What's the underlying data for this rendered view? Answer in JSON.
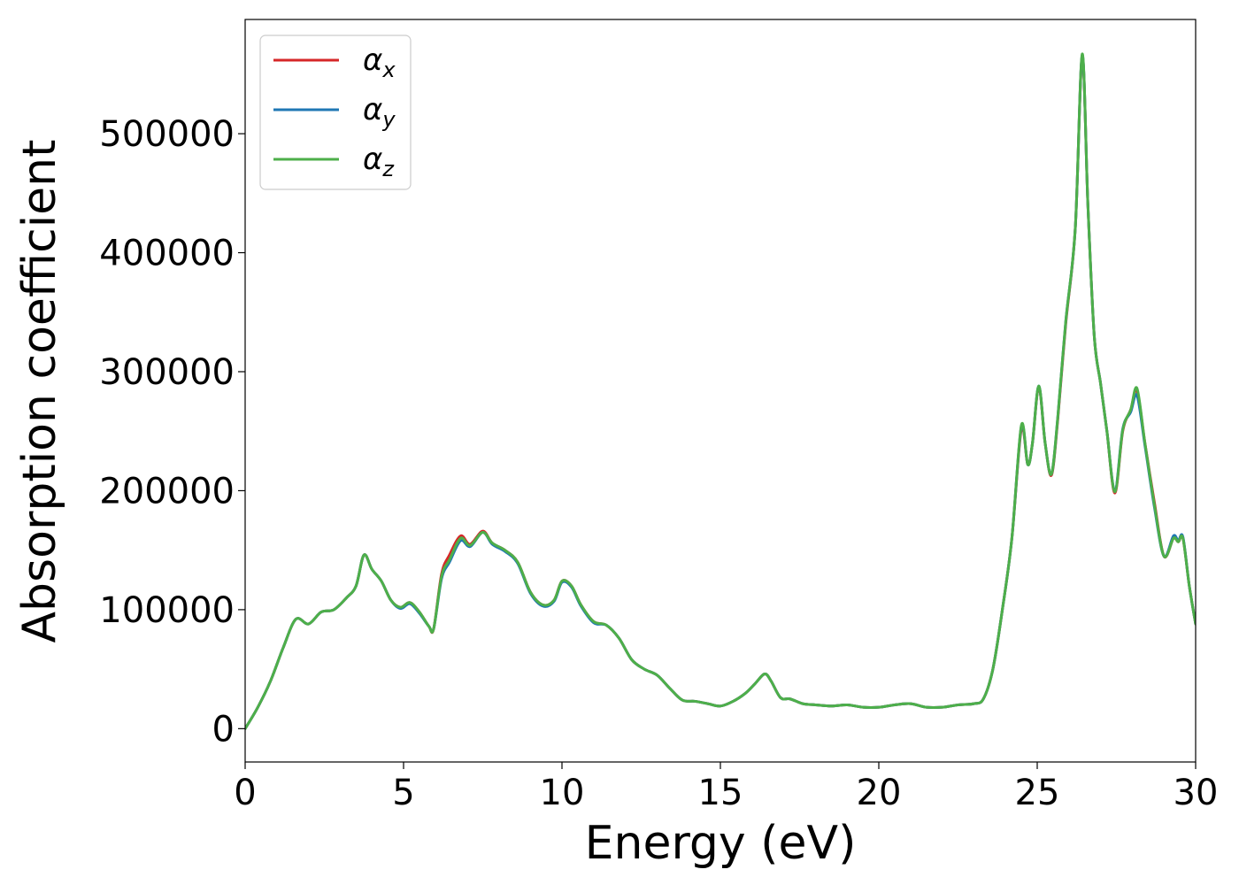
{
  "chart_data": {
    "type": "line",
    "xlabel": "Energy (eV)",
    "ylabel": "Absorption coefficient",
    "xlim": [
      0,
      30
    ],
    "ylim": [
      -28000,
      596000
    ],
    "x_ticks": [
      0,
      5,
      10,
      15,
      20,
      25,
      30
    ],
    "y_ticks": [
      0,
      100000,
      200000,
      300000,
      400000,
      500000
    ],
    "grid": false,
    "legend_position": "top-left",
    "series": [
      {
        "name": "α",
        "name_sub": "x",
        "color": "#d62728",
        "x": [
          0,
          0.4,
          0.8,
          1.2,
          1.6,
          2.0,
          2.4,
          2.8,
          3.2,
          3.5,
          3.75,
          4.0,
          4.3,
          4.6,
          4.9,
          5.2,
          5.5,
          5.8,
          5.95,
          6.2,
          6.45,
          6.8,
          7.1,
          7.5,
          7.8,
          8.2,
          8.6,
          9.0,
          9.4,
          9.75,
          10.0,
          10.3,
          10.6,
          11.0,
          11.4,
          11.8,
          12.2,
          12.6,
          13.0,
          13.4,
          13.8,
          14.2,
          14.6,
          15.0,
          15.4,
          15.8,
          16.1,
          16.4,
          16.6,
          16.9,
          17.2,
          17.6,
          18.0,
          18.5,
          19.0,
          19.5,
          20.0,
          20.5,
          21.0,
          21.5,
          22.0,
          22.5,
          23.0,
          23.3,
          23.6,
          23.9,
          24.2,
          24.5,
          24.7,
          24.85,
          25.05,
          25.25,
          25.45,
          25.65,
          25.9,
          26.2,
          26.42,
          26.6,
          26.8,
          27.0,
          27.2,
          27.45,
          27.7,
          27.95,
          28.15,
          28.4,
          28.7,
          29.0,
          29.3,
          29.45,
          29.6,
          29.8,
          30.0
        ],
        "values": [
          0,
          18000,
          40000,
          68000,
          92000,
          88000,
          98000,
          100000,
          110000,
          120000,
          146000,
          134000,
          124000,
          108000,
          102000,
          106000,
          98000,
          86000,
          84000,
          130000,
          146000,
          162000,
          155000,
          166000,
          156000,
          150000,
          140000,
          115000,
          104000,
          108000,
          124000,
          120000,
          104000,
          90000,
          87000,
          76000,
          58000,
          50000,
          45000,
          34000,
          24000,
          23000,
          21000,
          19000,
          23000,
          30000,
          38000,
          46000,
          40000,
          26000,
          25000,
          21000,
          20000,
          19000,
          20000,
          18000,
          18000,
          20000,
          21000,
          18000,
          18000,
          20000,
          21000,
          25000,
          50000,
          100000,
          160000,
          252000,
          222000,
          240000,
          287000,
          240000,
          213000,
          260000,
          340000,
          420000,
          565000,
          440000,
          330000,
          290000,
          250000,
          198000,
          250000,
          268000,
          284000,
          240000,
          190000,
          145000,
          160000,
          157000,
          160000,
          120000,
          88000
        ]
      },
      {
        "name": "α",
        "name_sub": "y",
        "color": "#1f77b4",
        "x": [
          0,
          0.4,
          0.8,
          1.2,
          1.6,
          2.0,
          2.4,
          2.8,
          3.2,
          3.5,
          3.75,
          4.0,
          4.3,
          4.6,
          4.9,
          5.2,
          5.5,
          5.8,
          5.95,
          6.2,
          6.45,
          6.8,
          7.1,
          7.5,
          7.8,
          8.2,
          8.6,
          9.0,
          9.4,
          9.75,
          10.0,
          10.3,
          10.6,
          11.0,
          11.4,
          11.8,
          12.2,
          12.6,
          13.0,
          13.4,
          13.8,
          14.2,
          14.6,
          15.0,
          15.4,
          15.8,
          16.1,
          16.4,
          16.6,
          16.9,
          17.2,
          17.6,
          18.0,
          18.5,
          19.0,
          19.5,
          20.0,
          20.5,
          21.0,
          21.5,
          22.0,
          22.5,
          23.0,
          23.3,
          23.6,
          23.9,
          24.2,
          24.5,
          24.7,
          24.85,
          25.05,
          25.25,
          25.45,
          25.65,
          25.9,
          26.2,
          26.42,
          26.6,
          26.8,
          27.0,
          27.2,
          27.45,
          27.7,
          27.95,
          28.15,
          28.4,
          28.7,
          29.0,
          29.3,
          29.45,
          29.6,
          29.8,
          30.0
        ],
        "values": [
          0,
          18000,
          40000,
          68000,
          92000,
          88000,
          98000,
          100000,
          110000,
          120000,
          146000,
          134000,
          124000,
          108000,
          101000,
          105000,
          97000,
          86000,
          84000,
          126000,
          140000,
          158000,
          153000,
          165000,
          155000,
          149000,
          139000,
          114000,
          103000,
          107000,
          123000,
          119000,
          103000,
          89000,
          87000,
          76000,
          58000,
          50000,
          45000,
          34000,
          24000,
          23000,
          21000,
          19000,
          23000,
          30000,
          38000,
          46000,
          40000,
          26000,
          25000,
          21000,
          20000,
          19000,
          20000,
          18000,
          18000,
          20000,
          21000,
          18000,
          18000,
          20000,
          21000,
          25000,
          50000,
          100000,
          160000,
          254000,
          222000,
          240000,
          288000,
          240000,
          214000,
          262000,
          342000,
          420000,
          566000,
          440000,
          330000,
          290000,
          250000,
          200000,
          252000,
          266000,
          280000,
          238000,
          186000,
          145000,
          162000,
          158000,
          161000,
          120000,
          88000
        ]
      },
      {
        "name": "α",
        "name_sub": "z",
        "color": "#4daf4a",
        "x": [
          0,
          0.4,
          0.8,
          1.2,
          1.6,
          2.0,
          2.4,
          2.8,
          3.2,
          3.5,
          3.75,
          4.0,
          4.3,
          4.6,
          4.9,
          5.2,
          5.5,
          5.8,
          5.95,
          6.2,
          6.45,
          6.8,
          7.1,
          7.5,
          7.8,
          8.2,
          8.6,
          9.0,
          9.4,
          9.75,
          10.0,
          10.3,
          10.6,
          11.0,
          11.4,
          11.8,
          12.2,
          12.6,
          13.0,
          13.4,
          13.8,
          14.2,
          14.6,
          15.0,
          15.4,
          15.8,
          16.1,
          16.4,
          16.6,
          16.9,
          17.2,
          17.6,
          18.0,
          18.5,
          19.0,
          19.5,
          20.0,
          20.5,
          21.0,
          21.5,
          22.0,
          22.5,
          23.0,
          23.3,
          23.6,
          23.9,
          24.2,
          24.5,
          24.7,
          24.85,
          25.05,
          25.25,
          25.45,
          25.65,
          25.9,
          26.2,
          26.42,
          26.6,
          26.8,
          27.0,
          27.2,
          27.45,
          27.7,
          27.95,
          28.15,
          28.4,
          28.7,
          29.0,
          29.3,
          29.45,
          29.6,
          29.8,
          30.0
        ],
        "values": [
          0,
          18000,
          40000,
          68000,
          92000,
          88000,
          98000,
          100000,
          110000,
          120000,
          146000,
          134000,
          124000,
          108000,
          102000,
          106000,
          98000,
          86000,
          84000,
          128000,
          142000,
          160000,
          154000,
          165000,
          156000,
          150000,
          140000,
          115000,
          104000,
          108000,
          124000,
          120000,
          104000,
          90000,
          87000,
          76000,
          58000,
          50000,
          45000,
          34000,
          24000,
          23000,
          21000,
          19000,
          23000,
          30000,
          38000,
          46000,
          40000,
          26000,
          25000,
          21000,
          20000,
          19000,
          20000,
          18000,
          18000,
          20000,
          21000,
          18000,
          18000,
          20000,
          21000,
          25000,
          50000,
          100000,
          160000,
          255000,
          222000,
          240000,
          288000,
          240000,
          214000,
          262000,
          342000,
          420000,
          567000,
          440000,
          330000,
          290000,
          250000,
          199000,
          251000,
          268000,
          286000,
          240000,
          188000,
          145000,
          160000,
          157000,
          160000,
          120000,
          88000
        ]
      }
    ]
  }
}
